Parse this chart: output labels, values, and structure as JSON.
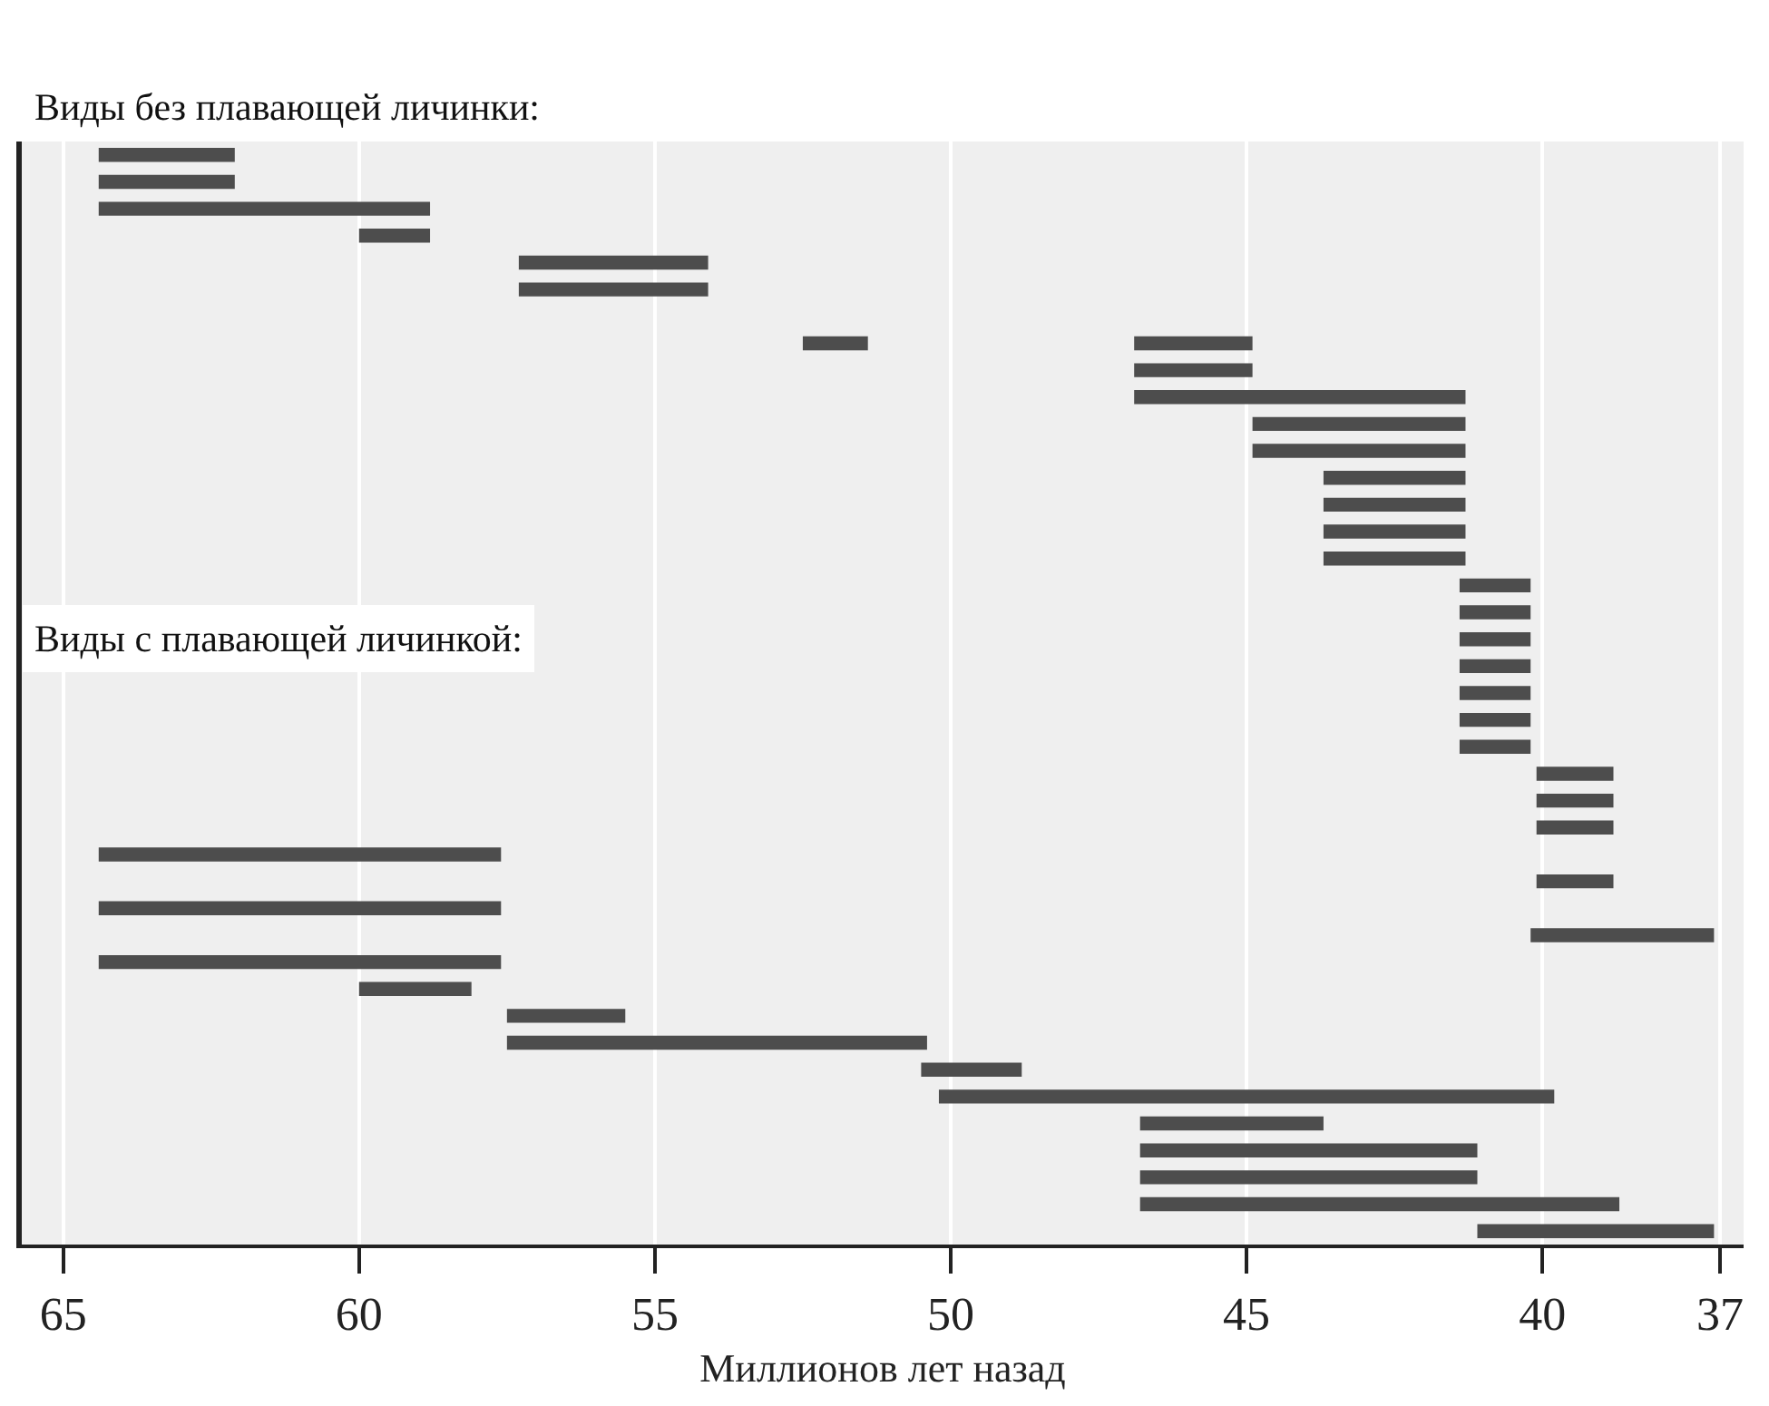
{
  "chart_data": {
    "type": "bar",
    "orientation": "horizontal",
    "xlabel": "Миллионов лет назад",
    "annotations": [
      "Виды без плавающей личинки:",
      "Виды с плавающей личинкой:"
    ],
    "categories": [
      null,
      null,
      null,
      null,
      null,
      null,
      null,
      null,
      null,
      null,
      null,
      null,
      null,
      null,
      null,
      null,
      null,
      null,
      null,
      null,
      null,
      null,
      null,
      null,
      null,
      null,
      null,
      null,
      null,
      null,
      null,
      null,
      null,
      null,
      null,
      null,
      null,
      null,
      null,
      null,
      null
    ],
    "series": [
      {
        "color": "#4d4d4d",
        "base": [
          62.1,
          62.1,
          58.8,
          58.8,
          54.1,
          54.1,
          null,
          51.4,
          44.9,
          41.3,
          41.3,
          41.3,
          41.3,
          41.3,
          41.3,
          41.3,
          40.2,
          40.2,
          40.2,
          40.2,
          40.2,
          40.2,
          40.2,
          38.8,
          38.8,
          38.8,
          null,
          38.8,
          null,
          37.1,
          null,
          null,
          null,
          null,
          null,
          null,
          null,
          null,
          null,
          null,
          null
        ],
        "values": [
          2.3,
          2.3,
          5.6,
          1.2,
          3.2,
          3.2,
          null,
          1.1,
          2.0,
          5.6,
          3.6,
          3.6,
          2.4,
          2.4,
          2.4,
          2.4,
          1.2,
          1.2,
          1.2,
          1.2,
          1.2,
          1.2,
          1.2,
          1.3,
          1.3,
          1.3,
          null,
          1.3,
          null,
          3.1,
          null,
          null,
          null,
          null,
          null,
          null,
          null,
          null,
          null,
          null,
          null
        ]
      },
      {
        "color": "#4d4d4d",
        "base": [
          null,
          null,
          null,
          null,
          null,
          null,
          null,
          44.9,
          null,
          null,
          null,
          null,
          null,
          null,
          null,
          null,
          null,
          null,
          null,
          null,
          null,
          null,
          null,
          null,
          null,
          null,
          null,
          null,
          null,
          null,
          null,
          null,
          null,
          null,
          null,
          null,
          null,
          null,
          null,
          null,
          null
        ],
        "values": [
          null,
          null,
          null,
          null,
          null,
          null,
          null,
          2.0,
          null,
          null,
          null,
          null,
          null,
          null,
          null,
          null,
          null,
          null,
          null,
          null,
          null,
          null,
          null,
          null,
          null,
          null,
          null,
          null,
          null,
          null,
          null,
          null,
          null,
          null,
          null,
          null,
          null,
          null,
          null,
          null,
          null
        ]
      },
      {
        "color": "#4d4d4d",
        "base": [
          null,
          null,
          null,
          null,
          null,
          null,
          null,
          null,
          null,
          null,
          null,
          null,
          null,
          null,
          null,
          null,
          null,
          null,
          null,
          null,
          null,
          null,
          null,
          null,
          null,
          null,
          57.6,
          null,
          57.6,
          null,
          57.6,
          58.1,
          55.5,
          50.4,
          48.8,
          39.8,
          43.7,
          41.1,
          41.1,
          38.7,
          37.1
        ],
        "values": [
          null,
          null,
          null,
          null,
          null,
          null,
          null,
          null,
          null,
          null,
          null,
          null,
          null,
          null,
          null,
          null,
          null,
          null,
          null,
          null,
          null,
          null,
          null,
          null,
          null,
          null,
          6.8,
          null,
          6.8,
          null,
          6.8,
          1.9,
          2.0,
          7.1,
          1.7,
          10.4,
          3.1,
          5.7,
          5.7,
          8.1,
          4.0
        ]
      }
    ],
    "xlim": [
      65.7,
      36.6
    ],
    "xticks": [
      65,
      60,
      55,
      50,
      45,
      40,
      37
    ],
    "grid": "x",
    "tick_labels": "x"
  }
}
